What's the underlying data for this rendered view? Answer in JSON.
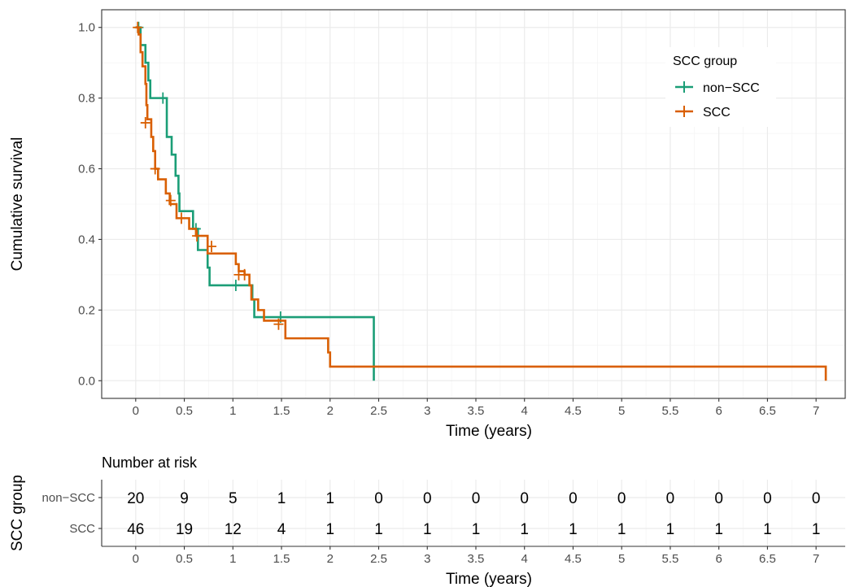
{
  "chart_data": [
    {
      "type": "line",
      "subtype": "kaplan-meier step",
      "xlabel": "Time (years)",
      "ylabel": "Cumulative survival",
      "xlim": [
        -0.35,
        7.3
      ],
      "ylim": [
        -0.05,
        1.05
      ],
      "x_ticks": [
        "0",
        "0.5",
        "1",
        "1.5",
        "2",
        "2.5",
        "3",
        "3.5",
        "4",
        "4.5",
        "5",
        "5.5",
        "6",
        "6.5",
        "7"
      ],
      "y_ticks": [
        "0.0",
        "0.2",
        "0.4",
        "0.6",
        "0.8",
        "1.0"
      ],
      "grid": true,
      "legend": {
        "title": "SCC group",
        "position": "top-right",
        "entries": [
          "non−SCC",
          "SCC"
        ]
      },
      "series": [
        {
          "name": "non−SCC",
          "color": "#1b9e77",
          "steps": [
            [
              0,
              1.0
            ],
            [
              0.05,
              0.95
            ],
            [
              0.1,
              0.9
            ],
            [
              0.13,
              0.85
            ],
            [
              0.15,
              0.8
            ],
            [
              0.3,
              0.8
            ],
            [
              0.32,
              0.69
            ],
            [
              0.37,
              0.64
            ],
            [
              0.41,
              0.58
            ],
            [
              0.44,
              0.53
            ],
            [
              0.45,
              0.48
            ],
            [
              0.58,
              0.48
            ],
            [
              0.59,
              0.43
            ],
            [
              0.64,
              0.37
            ],
            [
              0.74,
              0.32
            ],
            [
              0.76,
              0.27
            ],
            [
              1.16,
              0.27
            ],
            [
              1.2,
              0.23
            ],
            [
              1.22,
              0.18
            ],
            [
              2.45,
              0.18
            ],
            [
              2.45,
              0.0
            ]
          ],
          "censored": [
            [
              0.03,
              1.0
            ],
            [
              0.28,
              0.8
            ],
            [
              0.62,
              0.43
            ],
            [
              1.03,
              0.27
            ],
            [
              1.49,
              0.18
            ]
          ]
        },
        {
          "name": "SCC",
          "color": "#d95f02",
          "steps": [
            [
              0,
              1.0
            ],
            [
              0.03,
              0.98
            ],
            [
              0.05,
              0.93
            ],
            [
              0.07,
              0.89
            ],
            [
              0.1,
              0.84
            ],
            [
              0.11,
              0.78
            ],
            [
              0.12,
              0.74
            ],
            [
              0.16,
              0.69
            ],
            [
              0.18,
              0.65
            ],
            [
              0.2,
              0.6
            ],
            [
              0.23,
              0.57
            ],
            [
              0.3,
              0.57
            ],
            [
              0.31,
              0.53
            ],
            [
              0.35,
              0.5
            ],
            [
              0.4,
              0.5
            ],
            [
              0.42,
              0.46
            ],
            [
              0.53,
              0.46
            ],
            [
              0.55,
              0.43
            ],
            [
              0.6,
              0.43
            ],
            [
              0.62,
              0.41
            ],
            [
              0.73,
              0.41
            ],
            [
              0.74,
              0.36
            ],
            [
              1.02,
              0.36
            ],
            [
              1.03,
              0.33
            ],
            [
              1.06,
              0.31
            ],
            [
              1.12,
              0.3
            ],
            [
              1.16,
              0.3
            ],
            [
              1.17,
              0.27
            ],
            [
              1.19,
              0.23
            ],
            [
              1.25,
              0.23
            ],
            [
              1.26,
              0.2
            ],
            [
              1.31,
              0.2
            ],
            [
              1.32,
              0.17
            ],
            [
              1.5,
              0.17
            ],
            [
              1.54,
              0.12
            ],
            [
              1.97,
              0.12
            ],
            [
              1.98,
              0.08
            ],
            [
              2.0,
              0.04
            ],
            [
              7.1,
              0.04
            ],
            [
              7.1,
              0.0
            ]
          ],
          "censored": [
            [
              0.02,
              1.0
            ],
            [
              0.1,
              0.73
            ],
            [
              0.2,
              0.6
            ],
            [
              0.36,
              0.51
            ],
            [
              0.47,
              0.46
            ],
            [
              0.63,
              0.41
            ],
            [
              0.78,
              0.38
            ],
            [
              1.06,
              0.3
            ],
            [
              1.12,
              0.3
            ],
            [
              1.47,
              0.16
            ]
          ]
        }
      ]
    },
    {
      "type": "table",
      "title": "Number at risk",
      "ylabel": "SCC group",
      "xlabel": "Time (years)",
      "x_ticks": [
        "0",
        "0.5",
        "1",
        "1.5",
        "2",
        "2.5",
        "3",
        "3.5",
        "4",
        "4.5",
        "5",
        "5.5",
        "6",
        "6.5",
        "7"
      ],
      "rows": [
        {
          "label": "non−SCC",
          "values": [
            "20",
            "9",
            "5",
            "1",
            "1",
            "0",
            "0",
            "0",
            "0",
            "0",
            "0",
            "0",
            "0",
            "0",
            "0"
          ]
        },
        {
          "label": "SCC",
          "values": [
            "46",
            "19",
            "12",
            "4",
            "1",
            "1",
            "1",
            "1",
            "1",
            "1",
            "1",
            "1",
            "1",
            "1",
            "1"
          ]
        }
      ]
    }
  ]
}
